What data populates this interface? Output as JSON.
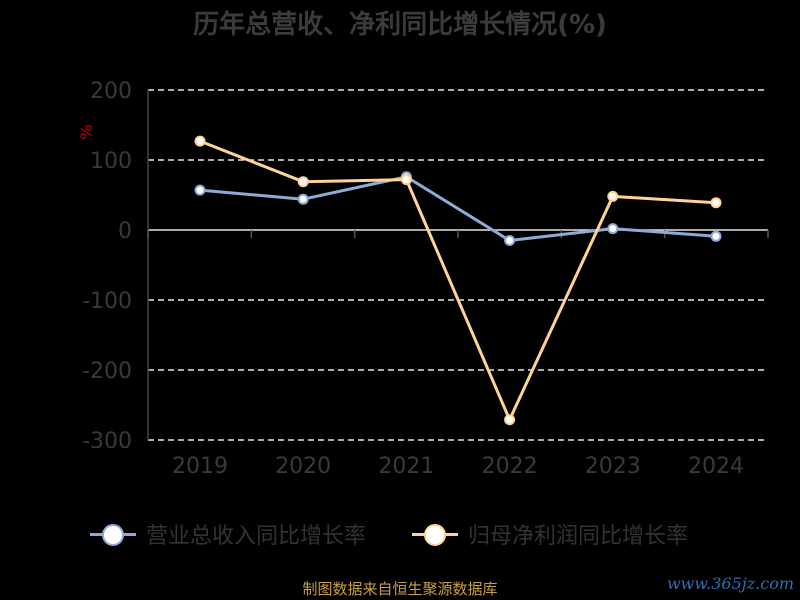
{
  "chart_data": {
    "type": "line",
    "title": "历年总营收、净利同比增长情况(%)",
    "ylabel": "%",
    "categories": [
      "2019",
      "2020",
      "2021",
      "2022",
      "2023",
      "2024"
    ],
    "ylim": [
      -300,
      200
    ],
    "yticks": [
      "200",
      "100",
      "0",
      "-100",
      "-200",
      "-300"
    ],
    "ytick_values": [
      200,
      100,
      0,
      -100,
      -200,
      -300
    ],
    "grid": true,
    "legend_position": "bottom",
    "series": [
      {
        "name": "营业总收入同比增长率",
        "values": [
          57,
          44,
          76,
          -15,
          2,
          -9
        ],
        "color": "#8eaad6"
      },
      {
        "name": "归母净利润同比增长率",
        "values": [
          127,
          69,
          72,
          -271,
          48,
          39
        ],
        "color": "#ffd394"
      }
    ]
  },
  "footer": {
    "source": "制图数据来自恒生聚源数据库",
    "watermark": "www.365jz.com"
  }
}
